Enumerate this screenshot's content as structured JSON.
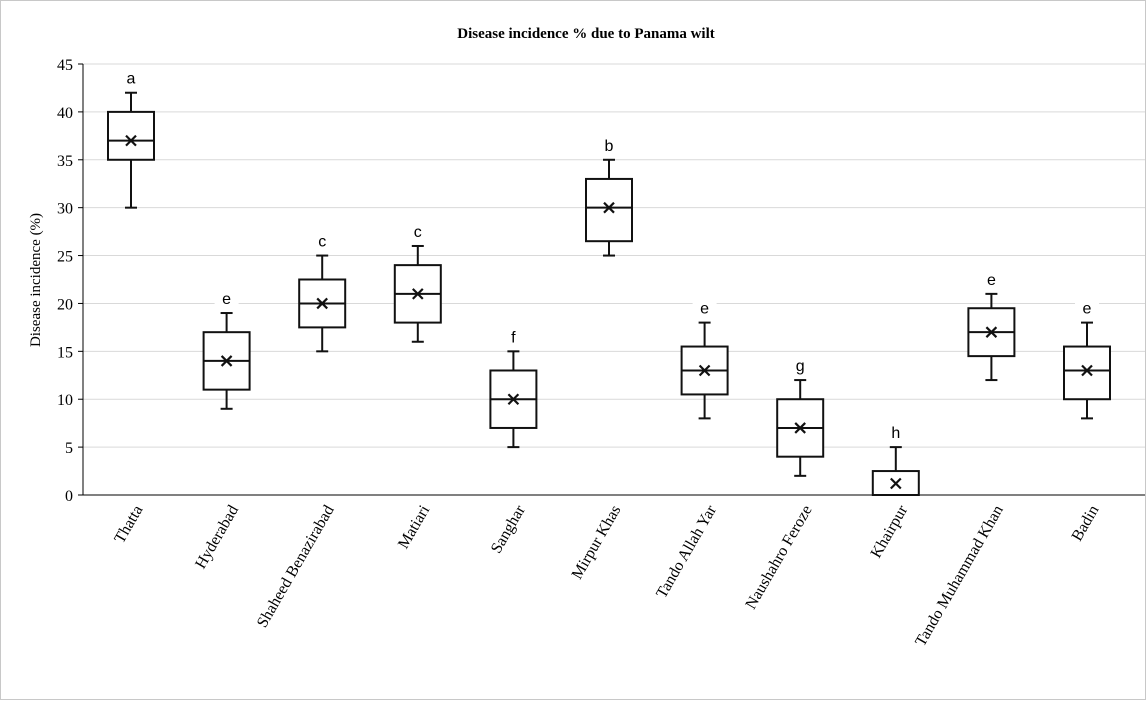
{
  "chart_data": {
    "type": "box",
    "title": "Disease incidence % due to Panama wilt",
    "xlabel": "",
    "ylabel": "Disease incidence (%)",
    "ylim": [
      0,
      45
    ],
    "yticks": [
      0,
      5,
      10,
      15,
      20,
      25,
      30,
      35,
      40,
      45
    ],
    "grid": true,
    "categories": [
      "Thatta",
      "Hyderabad",
      "Shaheed Benazirabad",
      "Matiari",
      "Sanghar",
      "Mirpur Khas",
      "Tando Allah Yar",
      "Naushahro Feroze",
      "Khairpur",
      "Tando Muhammad Khan",
      "Badin"
    ],
    "boxes": [
      {
        "min": 30,
        "q1": 35,
        "median": 37,
        "q3": 40,
        "max": 42,
        "mean": 37,
        "letter": "a"
      },
      {
        "min": 9,
        "q1": 11,
        "median": 14,
        "q3": 17,
        "max": 19,
        "mean": 14,
        "letter": "e"
      },
      {
        "min": 15,
        "q1": 17.5,
        "median": 20,
        "q3": 22.5,
        "max": 25,
        "mean": 20,
        "letter": "c"
      },
      {
        "min": 16,
        "q1": 18,
        "median": 21,
        "q3": 24,
        "max": 26,
        "mean": 21,
        "letter": "c"
      },
      {
        "min": 5,
        "q1": 7,
        "median": 10,
        "q3": 13,
        "max": 15,
        "mean": 10,
        "letter": "f"
      },
      {
        "min": 25,
        "q1": 26.5,
        "median": 30,
        "q3": 33,
        "max": 35,
        "mean": 30,
        "letter": "b"
      },
      {
        "min": 8,
        "q1": 10.5,
        "median": 13,
        "q3": 15.5,
        "max": 18,
        "mean": 13,
        "letter": "e"
      },
      {
        "min": 2,
        "q1": 4,
        "median": 7,
        "q3": 10,
        "max": 12,
        "mean": 7,
        "letter": "g"
      },
      {
        "min": 0,
        "q1": 0,
        "median": 0,
        "q3": 2.5,
        "max": 5,
        "mean": 1.2,
        "letter": "h"
      },
      {
        "min": 12,
        "q1": 14.5,
        "median": 17,
        "q3": 19.5,
        "max": 21,
        "mean": 17,
        "letter": "e"
      },
      {
        "min": 8,
        "q1": 10,
        "median": 13,
        "q3": 15.5,
        "max": 18,
        "mean": 13,
        "letter": "e"
      }
    ]
  }
}
